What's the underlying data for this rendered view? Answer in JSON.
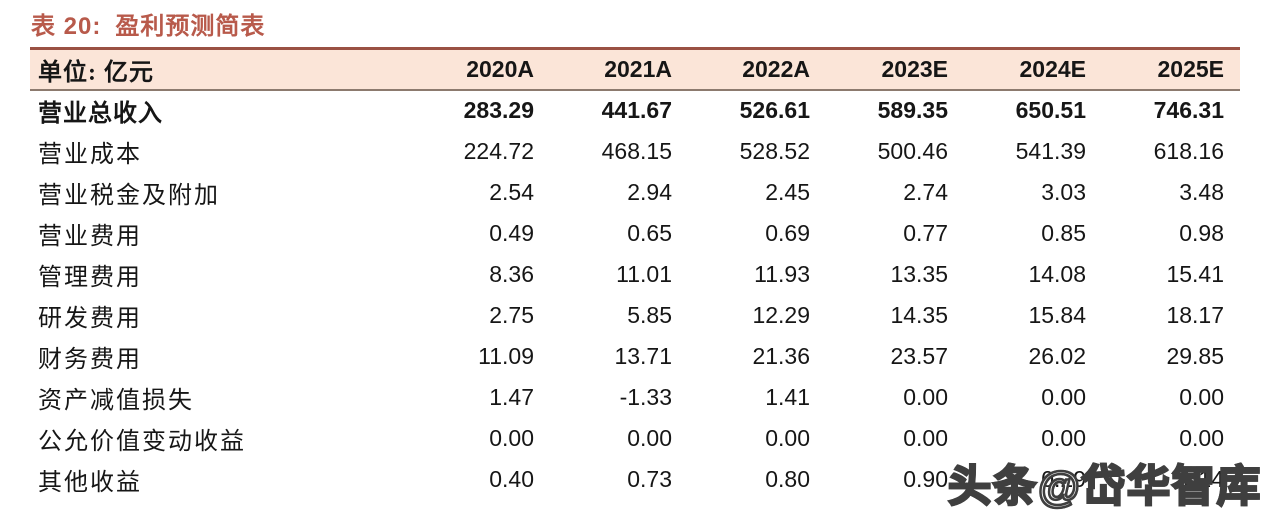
{
  "title": {
    "prefix": "表 20:",
    "text": "盈利预测简表"
  },
  "table": {
    "unit_label": "单位: 亿元",
    "columns": [
      "2020A",
      "2021A",
      "2022A",
      "2023E",
      "2024E",
      "2025E"
    ],
    "rows": [
      {
        "label": "营业总收入",
        "bold": true,
        "values": [
          "283.29",
          "441.67",
          "526.61",
          "589.35",
          "650.51",
          "746.31"
        ]
      },
      {
        "label": "营业成本",
        "bold": false,
        "values": [
          "224.72",
          "468.15",
          "528.52",
          "500.46",
          "541.39",
          "618.16"
        ]
      },
      {
        "label": "营业税金及附加",
        "bold": false,
        "values": [
          "2.54",
          "2.94",
          "2.45",
          "2.74",
          "3.03",
          "3.48"
        ]
      },
      {
        "label": "营业费用",
        "bold": false,
        "values": [
          "0.49",
          "0.65",
          "0.69",
          "0.77",
          "0.85",
          "0.98"
        ]
      },
      {
        "label": "管理费用",
        "bold": false,
        "values": [
          "8.36",
          "11.01",
          "11.93",
          "13.35",
          "14.08",
          "15.41"
        ]
      },
      {
        "label": "研发费用",
        "bold": false,
        "values": [
          "2.75",
          "5.85",
          "12.29",
          "14.35",
          "15.84",
          "18.17"
        ]
      },
      {
        "label": "财务费用",
        "bold": false,
        "values": [
          "11.09",
          "13.71",
          "21.36",
          "23.57",
          "26.02",
          "29.85"
        ]
      },
      {
        "label": "资产减值损失",
        "bold": false,
        "values": [
          "1.47",
          "-1.33",
          "1.41",
          "0.00",
          "0.00",
          "0.00"
        ]
      },
      {
        "label": "公允价值变动收益",
        "bold": false,
        "values": [
          "0.00",
          "0.00",
          "0.00",
          "0.00",
          "0.00",
          "0.00"
        ]
      },
      {
        "label": "其他收益",
        "bold": false,
        "values": [
          "0.40",
          "0.73",
          "0.80",
          "0.90",
          "0.29",
          "1.14"
        ]
      }
    ]
  },
  "watermark": {
    "text": "头条@岱华智库"
  },
  "colors": {
    "title": "#b85a4b",
    "header_background": "#fbe5d8",
    "table_top_border": "#9a5143",
    "header_bottom_border": "#8c7a6e",
    "body_text": "#161616",
    "watermark_fill": "#ffffff",
    "watermark_outline": "#3f3f3f"
  }
}
